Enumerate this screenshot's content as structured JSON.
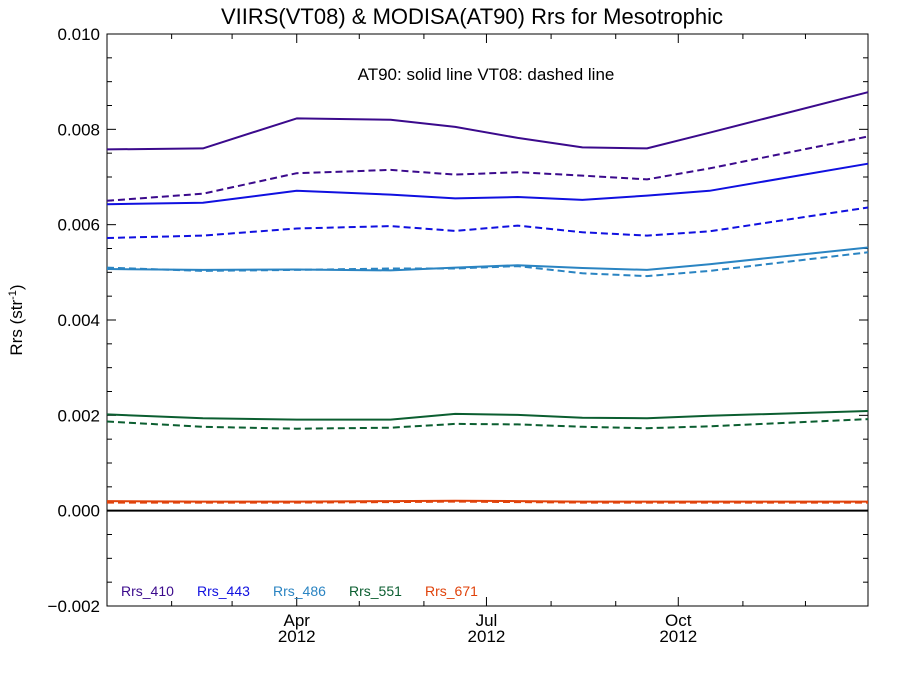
{
  "chart_data": {
    "type": "line",
    "title": "VIIRS(VT08) & MODISA(AT90)  Rrs for Mesotrophic",
    "annotation": "AT90: solid line   VT08: dashed line",
    "ylabel": {
      "main": "Rrs (str",
      "sup": "-1",
      "close": ")"
    },
    "xlabel": "",
    "ylim": [
      -0.002,
      0.01
    ],
    "yticks": [
      {
        "value": -0.002,
        "label": "−0.002"
      },
      {
        "value": 0.0,
        "label": "0.000"
      },
      {
        "value": 0.002,
        "label": "0.002"
      },
      {
        "value": 0.004,
        "label": "0.004"
      },
      {
        "value": 0.006,
        "label": "0.006"
      },
      {
        "value": 0.008,
        "label": "0.008"
      },
      {
        "value": 0.01,
        "label": "0.010"
      }
    ],
    "xlim": [
      "2012-01-01",
      "2012-12-31"
    ],
    "xticks": [
      {
        "date": "2012-04-01",
        "label": "Apr",
        "year": "2012"
      },
      {
        "date": "2012-07-01",
        "label": "Jul",
        "year": "2012"
      },
      {
        "date": "2012-10-01",
        "label": "Oct",
        "year": "2012"
      }
    ],
    "zero_line": true,
    "x": [
      "2012-01-01",
      "2012-02-16",
      "2012-04-01",
      "2012-05-16",
      "2012-06-16",
      "2012-07-16",
      "2012-08-16",
      "2012-09-16",
      "2012-10-16",
      "2012-12-31"
    ],
    "series": [
      {
        "name": "Rrs_410",
        "sensor": "AT90",
        "style": "solid",
        "color": "#3b0a8c",
        "values": [
          0.00758,
          0.0076,
          0.00823,
          0.0082,
          0.00805,
          0.00782,
          0.00762,
          0.0076,
          0.00793,
          0.00878
        ]
      },
      {
        "name": "Rrs_410",
        "sensor": "VT08",
        "style": "dashed",
        "color": "#3b0a8c",
        "values": [
          0.0065,
          0.00665,
          0.00708,
          0.00715,
          0.00705,
          0.0071,
          0.00703,
          0.00695,
          0.00718,
          0.00785
        ]
      },
      {
        "name": "Rrs_443",
        "sensor": "AT90",
        "style": "solid",
        "color": "#1010e0",
        "values": [
          0.00643,
          0.00646,
          0.00671,
          0.00663,
          0.00655,
          0.00658,
          0.00652,
          0.00661,
          0.00671,
          0.00728
        ]
      },
      {
        "name": "Rrs_443",
        "sensor": "VT08",
        "style": "dashed",
        "color": "#1010e0",
        "values": [
          0.00572,
          0.00577,
          0.00592,
          0.00597,
          0.00587,
          0.00598,
          0.00584,
          0.00577,
          0.00586,
          0.00636
        ]
      },
      {
        "name": "Rrs_486",
        "sensor": "AT90",
        "style": "solid",
        "color": "#2a84c2",
        "values": [
          0.00507,
          0.00505,
          0.00506,
          0.00504,
          0.0051,
          0.00515,
          0.00509,
          0.00505,
          0.00517,
          0.00552
        ]
      },
      {
        "name": "Rrs_486",
        "sensor": "VT08",
        "style": "dashed",
        "color": "#2a84c2",
        "values": [
          0.0051,
          0.00503,
          0.00505,
          0.00508,
          0.00508,
          0.00513,
          0.00498,
          0.00492,
          0.00503,
          0.00542
        ]
      },
      {
        "name": "Rrs_551",
        "sensor": "AT90",
        "style": "solid",
        "color": "#0b5e30",
        "values": [
          0.00202,
          0.00194,
          0.00191,
          0.00191,
          0.00203,
          0.00201,
          0.00195,
          0.00194,
          0.00199,
          0.00209
        ]
      },
      {
        "name": "Rrs_551",
        "sensor": "VT08",
        "style": "dashed",
        "color": "#0b5e30",
        "values": [
          0.00187,
          0.00176,
          0.00172,
          0.00174,
          0.00182,
          0.00181,
          0.00176,
          0.00173,
          0.00177,
          0.00192
        ]
      },
      {
        "name": "Rrs_671",
        "sensor": "AT90",
        "style": "solid",
        "color": "#e0420a",
        "values": [
          0.0002,
          0.00019,
          0.00019,
          0.0002,
          0.00021,
          0.0002,
          0.00019,
          0.00019,
          0.00019,
          0.00019
        ]
      },
      {
        "name": "Rrs_671",
        "sensor": "VT08",
        "style": "dashed",
        "color": "#e0420a",
        "values": [
          0.00017,
          0.00017,
          0.00017,
          0.00018,
          0.00019,
          0.00018,
          0.00017,
          0.00017,
          0.00017,
          0.00017
        ]
      }
    ],
    "legend": {
      "placement": "bottom-left",
      "items": [
        {
          "label": "Rrs_410",
          "color": "#3b0a8c"
        },
        {
          "label": "Rrs_443",
          "color": "#1010e0"
        },
        {
          "label": "Rrs_486",
          "color": "#2a84c2"
        },
        {
          "label": "Rrs_551",
          "color": "#0b5e30"
        },
        {
          "label": "Rrs_671",
          "color": "#e0420a"
        }
      ]
    }
  }
}
